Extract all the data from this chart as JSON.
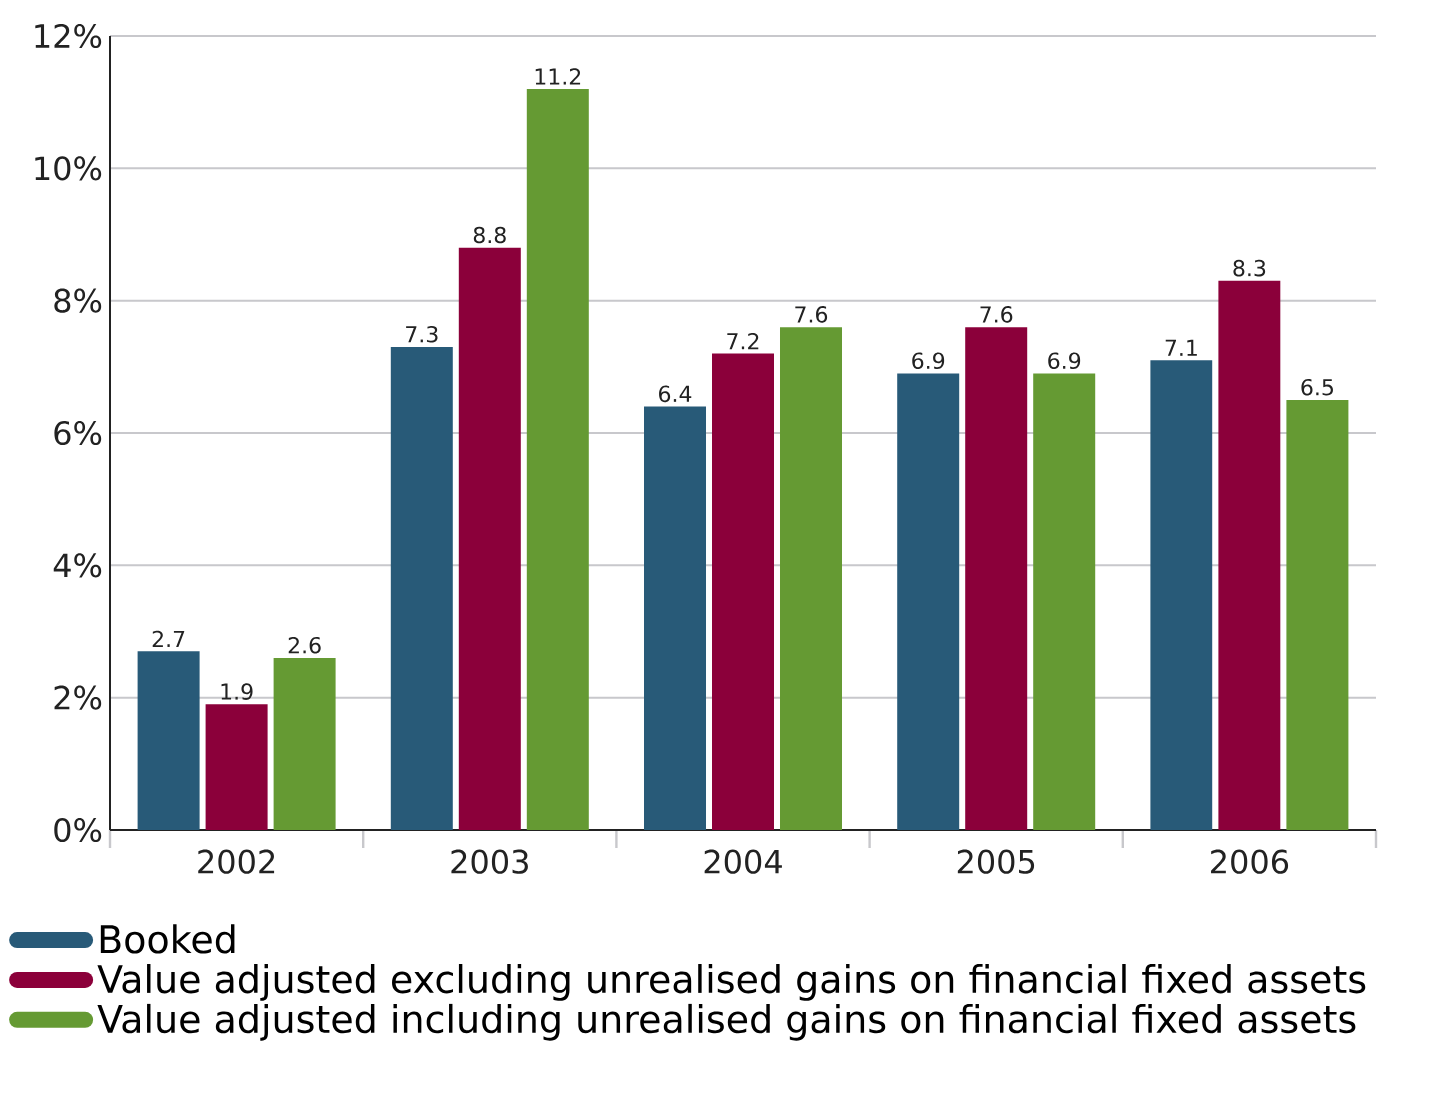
{
  "chart_data": {
    "type": "bar",
    "categories": [
      "2002",
      "2003",
      "2004",
      "2005",
      "2006"
    ],
    "series": [
      {
        "name": "Booked",
        "color": "#285a78",
        "values": [
          2.7,
          7.3,
          6.4,
          6.9,
          7.1
        ]
      },
      {
        "name": "Value adjusted excluding unrealised gains on financial fixed assets",
        "color": "#8b003a",
        "values": [
          1.9,
          8.8,
          7.2,
          7.6,
          8.3
        ]
      },
      {
        "name": "Value adjusted including unrealised gains on financial fixed assets",
        "color": "#659a33",
        "values": [
          2.6,
          11.2,
          7.6,
          6.9,
          6.5
        ]
      }
    ],
    "ylim": [
      0,
      12
    ],
    "yticks": [
      {
        "value": 0,
        "label": "0%"
      },
      {
        "value": 2,
        "label": "2%"
      },
      {
        "value": 4,
        "label": "4%"
      },
      {
        "value": 6,
        "label": "6%"
      },
      {
        "value": 8,
        "label": "8%"
      },
      {
        "value": 10,
        "label": "10%"
      },
      {
        "value": 12,
        "label": "12%"
      }
    ],
    "grid": "y",
    "legend": "bottom",
    "data_labels": true
  }
}
